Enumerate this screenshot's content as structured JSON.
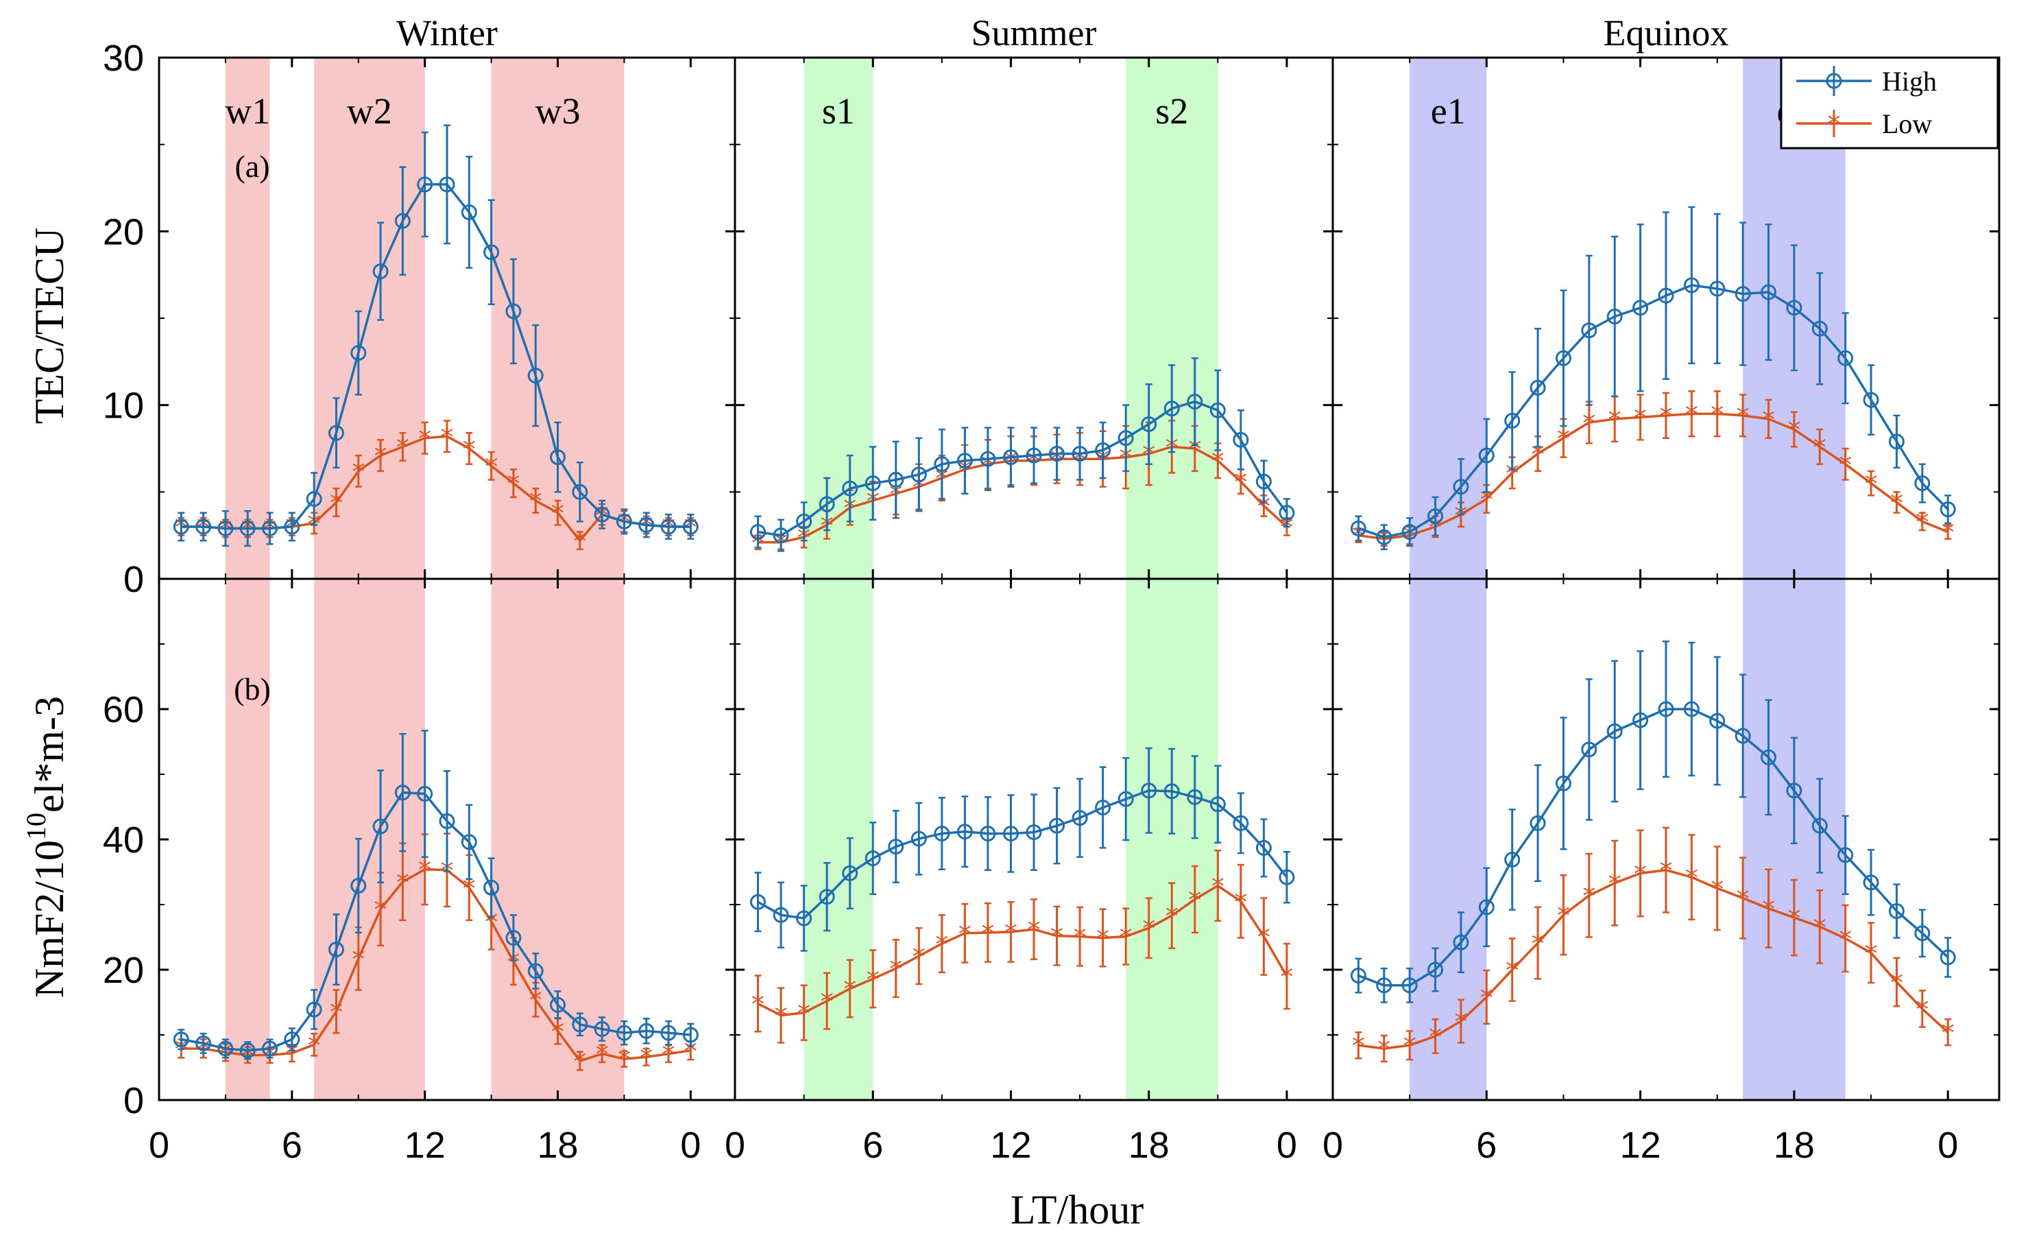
{
  "chart_data": {
    "type": "line",
    "xlabel": "LT/hour",
    "x_ticks": [
      "0",
      "6",
      "12",
      "18",
      "0"
    ],
    "colors": {
      "High": "#1f6fb0",
      "Low": "#d9541e"
    },
    "legend": {
      "placement": "top-right",
      "entries": [
        "High",
        "Low"
      ]
    },
    "panels": [
      {
        "season": "Winter",
        "bands": [
          {
            "label": "w1",
            "from": 3,
            "to": 5
          },
          {
            "label": "w2",
            "from": 7,
            "to": 12
          },
          {
            "label": "w3",
            "from": 15,
            "to": 21
          }
        ],
        "band_color": "#f8c8c8"
      },
      {
        "season": "Summer",
        "bands": [
          {
            "label": "s1",
            "from": 3,
            "to": 6
          },
          {
            "label": "s2",
            "from": 17,
            "to": 21
          }
        ],
        "band_color": "#ccfccc"
      },
      {
        "season": "Equinox",
        "bands": [
          {
            "label": "e1",
            "from": 3,
            "to": 6
          },
          {
            "label": "e2",
            "from": 16,
            "to": 20
          }
        ],
        "band_color": "#c8c8f8"
      }
    ],
    "x": [
      1,
      2,
      3,
      4,
      5,
      6,
      7,
      8,
      9,
      10,
      11,
      12,
      13,
      14,
      15,
      16,
      17,
      18,
      19,
      20,
      21,
      22,
      23,
      24
    ],
    "rows": [
      {
        "name": "TEC",
        "ylabel": "TEC/TECU",
        "panel_label": "(a)",
        "ylim": [
          0,
          30
        ],
        "y_ticks": [
          0,
          10,
          20,
          30
        ],
        "series": {
          "Winter": {
            "High": {
              "values": [
                3.0,
                3.0,
                2.9,
                2.9,
                2.9,
                3.0,
                4.6,
                8.4,
                13.0,
                17.7,
                20.6,
                22.7,
                22.7,
                21.1,
                18.8,
                15.4,
                11.7,
                7.0,
                5.0,
                3.7,
                3.3,
                3.1,
                3.0,
                3.0
              ],
              "errors": [
                0.8,
                0.8,
                1.0,
                1.0,
                0.9,
                0.8,
                1.5,
                2.0,
                2.4,
                2.8,
                3.1,
                3.0,
                3.4,
                3.2,
                3.0,
                3.0,
                2.9,
                2.0,
                1.7,
                0.8,
                0.7,
                0.7,
                0.7,
                0.7
              ]
            },
            "Low": {
              "values": [
                3.0,
                3.0,
                2.9,
                2.9,
                2.9,
                3.0,
                3.2,
                4.4,
                6.2,
                7.1,
                7.6,
                8.1,
                8.2,
                7.5,
                6.5,
                5.5,
                4.5,
                3.8,
                2.2,
                3.7,
                3.3,
                3.1,
                3.0,
                3.0
              ],
              "errors": [
                0.5,
                0.5,
                0.5,
                0.5,
                0.5,
                0.5,
                0.6,
                0.8,
                0.9,
                0.9,
                0.8,
                0.9,
                0.9,
                0.9,
                0.8,
                0.8,
                0.7,
                0.7,
                0.5,
                0.6,
                0.6,
                0.5,
                0.5,
                0.5
              ]
            }
          },
          "Summer": {
            "High": {
              "values": [
                2.7,
                2.5,
                3.3,
                4.3,
                5.2,
                5.5,
                5.7,
                6.0,
                6.6,
                6.8,
                6.9,
                7.0,
                7.1,
                7.2,
                7.2,
                7.4,
                8.1,
                8.9,
                9.8,
                10.2,
                9.7,
                8.0,
                5.6,
                3.8
              ],
              "errors": [
                0.9,
                0.9,
                1.1,
                1.5,
                1.9,
                2.1,
                2.2,
                2.1,
                2.0,
                1.9,
                1.8,
                1.7,
                1.6,
                1.5,
                1.5,
                1.6,
                1.9,
                2.3,
                2.5,
                2.5,
                2.3,
                1.7,
                1.2,
                0.8
              ]
            },
            "Low": {
              "values": [
                2.1,
                2.1,
                2.4,
                3.1,
                4.1,
                4.5,
                4.9,
                5.3,
                5.8,
                6.3,
                6.6,
                6.8,
                6.8,
                6.9,
                6.9,
                6.9,
                7.0,
                7.2,
                7.6,
                7.5,
                6.8,
                5.6,
                4.2,
                3.0
              ],
              "errors": [
                0.4,
                0.4,
                0.6,
                0.8,
                1.0,
                1.1,
                1.2,
                1.3,
                1.3,
                1.4,
                1.4,
                1.4,
                1.4,
                1.4,
                1.5,
                1.6,
                1.8,
                1.8,
                1.5,
                1.3,
                1.0,
                0.7,
                0.6,
                0.5
              ]
            }
          },
          "Equinox": {
            "High": {
              "values": [
                2.9,
                2.4,
                2.7,
                3.6,
                5.3,
                7.1,
                9.1,
                11.0,
                12.7,
                14.3,
                15.1,
                15.6,
                16.3,
                16.9,
                16.7,
                16.4,
                16.5,
                15.6,
                14.4,
                12.7,
                10.3,
                7.9,
                5.5,
                4.0
              ],
              "errors": [
                0.7,
                0.7,
                0.8,
                1.1,
                1.6,
                2.1,
                2.8,
                3.4,
                3.9,
                4.3,
                4.6,
                4.8,
                4.8,
                4.5,
                4.3,
                4.1,
                3.9,
                3.6,
                3.2,
                2.6,
                2.0,
                1.5,
                1.1,
                0.8
              ]
            },
            "Low": {
              "values": [
                2.5,
                2.3,
                2.5,
                3.0,
                3.7,
                4.6,
                6.1,
                7.2,
                8.1,
                9.0,
                9.2,
                9.3,
                9.4,
                9.5,
                9.5,
                9.4,
                9.2,
                8.6,
                7.6,
                6.6,
                5.5,
                4.4,
                3.3,
                2.7
              ],
              "errors": [
                0.4,
                0.4,
                0.5,
                0.6,
                0.7,
                0.8,
                0.9,
                1.0,
                1.1,
                1.2,
                1.3,
                1.3,
                1.3,
                1.3,
                1.3,
                1.2,
                1.1,
                1.0,
                1.0,
                0.9,
                0.7,
                0.6,
                0.5,
                0.4
              ]
            }
          }
        }
      },
      {
        "name": "NmF2",
        "ylabel_prefix": "NmF2/10",
        "ylabel_sup": "10",
        "ylabel_suffix": "el*m-3",
        "panel_label": "(b)",
        "ylim": [
          0,
          80
        ],
        "y_ticks": [
          0,
          20,
          40,
          60
        ],
        "series": {
          "Winter": {
            "High": {
              "values": [
                9.3,
                8.7,
                7.9,
                7.6,
                7.9,
                9.3,
                13.9,
                23.1,
                32.9,
                42.0,
                47.2,
                47.0,
                42.8,
                39.6,
                32.6,
                24.9,
                19.8,
                14.6,
                11.6,
                10.9,
                10.3,
                10.6,
                10.3,
                10.0
              ],
              "errors": [
                1.5,
                1.5,
                1.4,
                1.3,
                1.4,
                1.7,
                3.0,
                5.4,
                7.2,
                8.6,
                9.0,
                9.7,
                7.7,
                5.7,
                4.5,
                3.5,
                2.7,
                2.1,
                1.7,
                1.8,
                1.8,
                1.9,
                1.8,
                1.7
              ]
            },
            "Low": {
              "values": [
                7.9,
                7.9,
                7.3,
                6.9,
                6.9,
                7.2,
                8.5,
                13.6,
                21.7,
                29.3,
                33.5,
                35.4,
                35.3,
                32.6,
                27.4,
                21.3,
                15.4,
                10.6,
                6.0,
                7.1,
                6.3,
                6.6,
                7.1,
                7.6
              ],
              "errors": [
                1.4,
                1.4,
                1.3,
                1.2,
                1.2,
                1.3,
                1.7,
                3.3,
                4.8,
                5.6,
                5.9,
                5.4,
                5.6,
                5.0,
                4.3,
                3.6,
                2.6,
                2.0,
                1.4,
                1.3,
                1.2,
                1.3,
                1.3,
                1.4
              ]
            }
          },
          "Summer": {
            "High": {
              "values": [
                30.4,
                28.4,
                27.9,
                31.2,
                34.8,
                37.1,
                38.9,
                40.1,
                40.9,
                41.2,
                40.9,
                40.9,
                41.1,
                42.1,
                43.3,
                44.9,
                46.2,
                47.5,
                47.4,
                46.5,
                45.4,
                42.5,
                38.7,
                34.2
              ],
              "errors": [
                4.5,
                5.0,
                5.0,
                5.2,
                5.4,
                5.5,
                5.5,
                5.5,
                5.5,
                5.4,
                5.6,
                5.9,
                5.8,
                5.8,
                6.0,
                6.2,
                6.3,
                6.5,
                6.5,
                6.3,
                5.9,
                4.6,
                4.4,
                3.9
              ]
            },
            "Low": {
              "values": [
                14.8,
                13.0,
                13.4,
                15.2,
                17.1,
                18.6,
                20.2,
                22.1,
                24.0,
                25.6,
                25.7,
                25.8,
                26.2,
                25.2,
                25.1,
                24.9,
                25.1,
                26.4,
                28.3,
                30.8,
                32.9,
                30.5,
                25.1,
                19.0
              ],
              "errors": [
                4.3,
                4.2,
                4.2,
                4.3,
                4.4,
                4.4,
                4.4,
                4.3,
                4.4,
                4.5,
                4.5,
                4.6,
                4.6,
                4.5,
                4.5,
                4.4,
                4.3,
                4.6,
                5.0,
                5.1,
                5.4,
                5.6,
                5.9,
                5.0
              ]
            }
          },
          "Equinox": {
            "High": {
              "values": [
                19.1,
                17.6,
                17.6,
                20.0,
                24.2,
                29.6,
                36.9,
                42.5,
                48.6,
                53.8,
                56.6,
                58.3,
                60.0,
                60.0,
                58.2,
                55.9,
                52.6,
                47.5,
                42.1,
                37.6,
                33.4,
                29.0,
                25.6,
                21.9
              ],
              "errors": [
                2.6,
                2.6,
                2.6,
                3.3,
                4.6,
                6.0,
                7.7,
                8.9,
                10.1,
                10.8,
                10.8,
                10.6,
                10.4,
                10.2,
                9.8,
                9.4,
                8.8,
                8.1,
                7.2,
                6.0,
                5.0,
                4.1,
                3.6,
                3.0
              ]
            },
            "Low": {
              "values": [
                8.4,
                7.9,
                8.4,
                9.8,
                12.1,
                15.8,
                20.0,
                24.1,
                28.4,
                31.4,
                33.3,
                34.8,
                35.3,
                34.2,
                32.5,
                31.0,
                29.4,
                28.0,
                26.6,
                24.8,
                22.6,
                18.1,
                14.0,
                10.4
              ],
              "errors": [
                2.0,
                2.0,
                2.2,
                2.6,
                3.3,
                4.1,
                4.8,
                5.5,
                6.1,
                6.4,
                6.5,
                6.6,
                6.5,
                6.5,
                6.4,
                6.2,
                6.0,
                5.8,
                5.6,
                5.1,
                4.6,
                3.7,
                2.8,
                2.0
              ]
            }
          }
        }
      }
    ]
  }
}
